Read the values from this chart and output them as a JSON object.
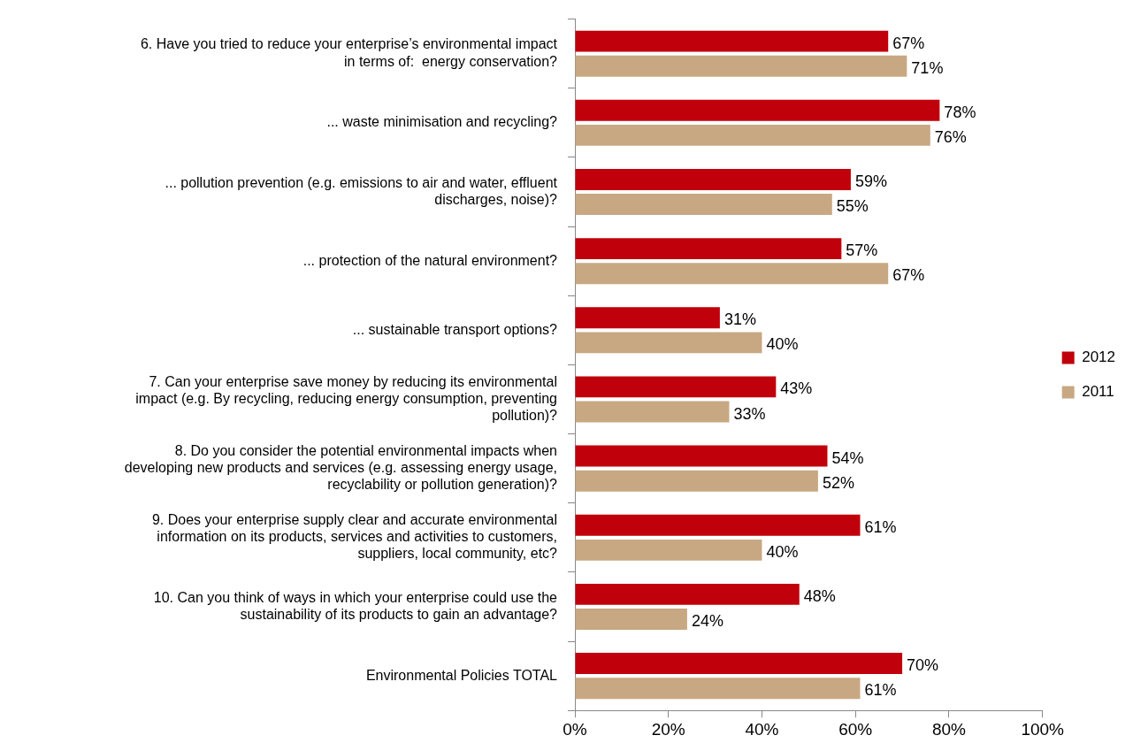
{
  "chart_data": {
    "type": "bar",
    "orientation": "horizontal",
    "categories": [
      "6. Have you tried to reduce your enterprise’s environmental impact in terms of:  energy conservation?",
      "... waste minimisation and recycling?",
      "... pollution prevention (e.g. emissions to air and water, effluent discharges, noise)?",
      "... protection of the natural environment?",
      "... sustainable transport options?",
      "7. Can your enterprise save money by reducing its environmental impact (e.g. By recycling, reducing energy consumption, preventing pollution)?",
      "8. Do you consider the potential environmental impacts when developing new products and services (e.g. assessing energy usage, recyclability or pollution generation)?",
      "9. Does your enterprise supply clear and accurate environmental information on its products, services and activities to customers, suppliers, local community, etc?",
      "10. Can you think of ways in which your enterprise could use the sustainability of its products to gain an advantage?",
      "Environmental Policies TOTAL"
    ],
    "series": [
      {
        "name": "2012",
        "color": "#c0000b",
        "values": [
          67,
          78,
          59,
          57,
          31,
          43,
          54,
          61,
          48,
          70
        ],
        "value_labels": [
          "67%",
          "78%",
          "59%",
          "57%",
          "31%",
          "43%",
          "54%",
          "61%",
          "48%",
          "70%"
        ]
      },
      {
        "name": "2011",
        "color": "#c8a882",
        "values": [
          71,
          76,
          55,
          67,
          40,
          33,
          52,
          40,
          24,
          61
        ],
        "value_labels": [
          "71%",
          "76%",
          "55%",
          "67%",
          "40%",
          "33%",
          "52%",
          "40%",
          "24%",
          "61%"
        ]
      }
    ],
    "xlim": [
      0,
      100
    ],
    "xticks": [
      {
        "value": 0,
        "label": "0%"
      },
      {
        "value": 20,
        "label": "20%"
      },
      {
        "value": 40,
        "label": "40%"
      },
      {
        "value": 60,
        "label": "60%"
      },
      {
        "value": 80,
        "label": "80%"
      },
      {
        "value": 100,
        "label": "100%"
      }
    ],
    "grid": false,
    "legend": "right"
  }
}
